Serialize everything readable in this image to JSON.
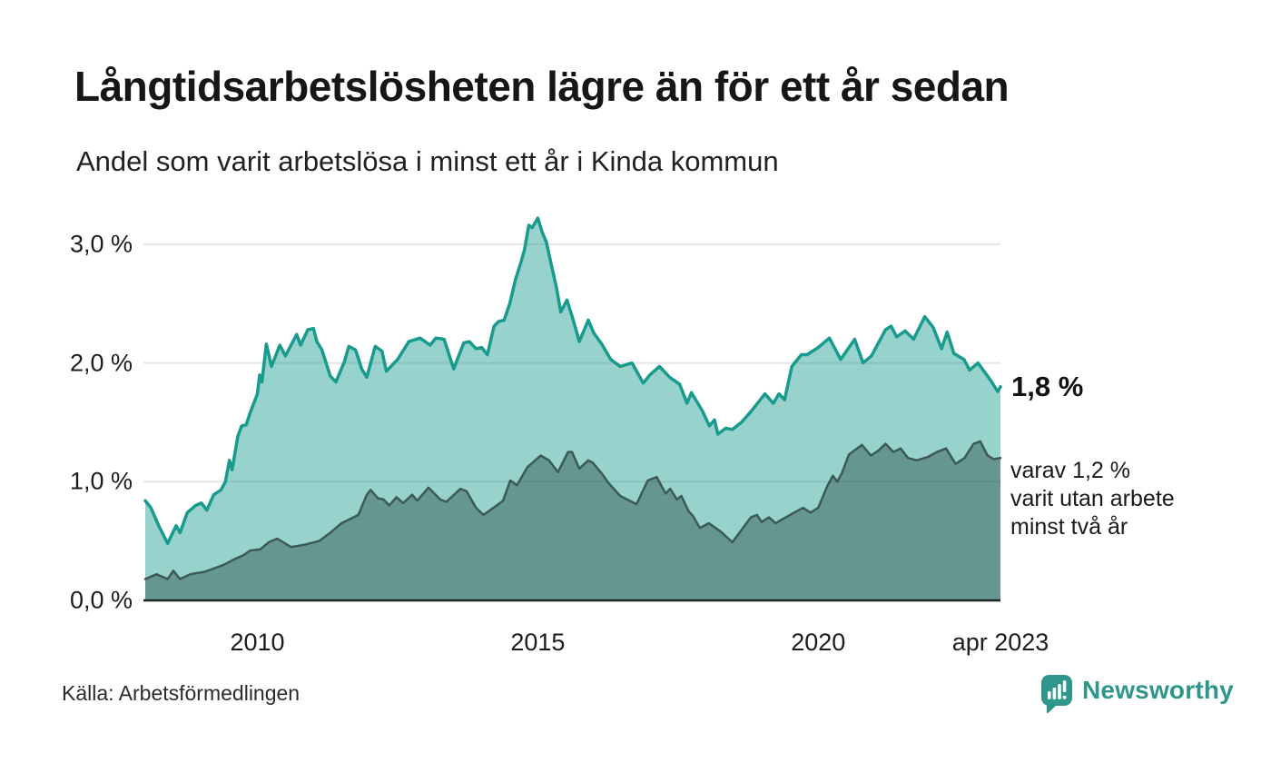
{
  "header": {
    "title": "Långtidsarbetslösheten lägre än för ett år sedan",
    "subtitle": "Andel som varit arbetslösa i minst ett år i Kinda kommun"
  },
  "annotations": {
    "latest_total": "1,8 %",
    "subset_line1": "varav 1,2 %",
    "subset_line2": "varit utan arbete",
    "subset_line3": "minst två år"
  },
  "footer": {
    "source": "Källa: Arbetsförmedlingen",
    "brand": "Newsworthy"
  },
  "colors": {
    "accent_teal": "#189b8d",
    "light_fill": "rgba(34,160,146,0.47)",
    "dark_stroke": "#3c5a55",
    "dark_fill": "rgba(43,77,72,0.45)",
    "gridline": "#e2e4e8",
    "baseline": "#1b2422",
    "brand_teal": "#2e968b",
    "text_dark": "#161616"
  },
  "chart_data": {
    "type": "area",
    "title": "Långtidsarbetslösheten lägre än för ett år sedan",
    "subtitle": "Andel som varit arbetslösa i minst ett år i Kinda kommun",
    "xlabel": "",
    "ylabel": "",
    "x_range": [
      2008.0,
      2023.25
    ],
    "ylim": [
      0,
      3.3
    ],
    "grid": "horizontal",
    "legend": "none (annotated at line ends)",
    "x_axis": {
      "ticks": [
        {
          "label": "2010",
          "year": 2010
        },
        {
          "label": "2015",
          "year": 2015
        },
        {
          "label": "2020",
          "year": 2020
        },
        {
          "label": "apr 2023",
          "year": 2023.25
        }
      ]
    },
    "y_axis": {
      "ticks": [
        {
          "label": "0,0 %",
          "value": 0
        },
        {
          "label": "1,0 %",
          "value": 1
        },
        {
          "label": "2,0 %",
          "value": 2
        },
        {
          "label": "3,0 %",
          "value": 3
        }
      ]
    },
    "series": [
      {
        "name": "Arbetslösa minst ett år (andel, %)",
        "latest_value": 1.8,
        "points": [
          [
            2008.0,
            0.84
          ],
          [
            2008.1,
            0.78
          ],
          [
            2008.25,
            0.62
          ],
          [
            2008.4,
            0.48
          ],
          [
            2008.55,
            0.63
          ],
          [
            2008.62,
            0.57
          ],
          [
            2008.75,
            0.74
          ],
          [
            2008.9,
            0.8
          ],
          [
            2009.0,
            0.82
          ],
          [
            2009.1,
            0.76
          ],
          [
            2009.22,
            0.89
          ],
          [
            2009.35,
            0.93
          ],
          [
            2009.43,
            1.0
          ],
          [
            2009.5,
            1.18
          ],
          [
            2009.55,
            1.1
          ],
          [
            2009.65,
            1.38
          ],
          [
            2009.72,
            1.47
          ],
          [
            2009.8,
            1.48
          ],
          [
            2009.87,
            1.58
          ],
          [
            2010.0,
            1.74
          ],
          [
            2010.04,
            1.9
          ],
          [
            2010.08,
            1.84
          ],
          [
            2010.16,
            2.16
          ],
          [
            2010.25,
            1.97
          ],
          [
            2010.4,
            2.15
          ],
          [
            2010.5,
            2.06
          ],
          [
            2010.7,
            2.24
          ],
          [
            2010.77,
            2.15
          ],
          [
            2010.9,
            2.28
          ],
          [
            2011.0,
            2.29
          ],
          [
            2011.06,
            2.18
          ],
          [
            2011.15,
            2.11
          ],
          [
            2011.3,
            1.89
          ],
          [
            2011.4,
            1.84
          ],
          [
            2011.55,
            2.01
          ],
          [
            2011.63,
            2.14
          ],
          [
            2011.75,
            2.11
          ],
          [
            2011.86,
            1.95
          ],
          [
            2011.95,
            1.88
          ],
          [
            2012.1,
            2.14
          ],
          [
            2012.22,
            2.1
          ],
          [
            2012.3,
            1.93
          ],
          [
            2012.5,
            2.03
          ],
          [
            2012.7,
            2.18
          ],
          [
            2012.9,
            2.21
          ],
          [
            2013.08,
            2.15
          ],
          [
            2013.18,
            2.21
          ],
          [
            2013.33,
            2.2
          ],
          [
            2013.5,
            1.95
          ],
          [
            2013.68,
            2.17
          ],
          [
            2013.78,
            2.18
          ],
          [
            2013.9,
            2.12
          ],
          [
            2014.0,
            2.13
          ],
          [
            2014.1,
            2.07
          ],
          [
            2014.22,
            2.31
          ],
          [
            2014.3,
            2.35
          ],
          [
            2014.4,
            2.36
          ],
          [
            2014.5,
            2.5
          ],
          [
            2014.6,
            2.7
          ],
          [
            2014.7,
            2.85
          ],
          [
            2014.76,
            2.95
          ],
          [
            2014.84,
            3.16
          ],
          [
            2014.9,
            3.14
          ],
          [
            2015.0,
            3.22
          ],
          [
            2015.08,
            3.1
          ],
          [
            2015.15,
            3.02
          ],
          [
            2015.24,
            2.83
          ],
          [
            2015.33,
            2.64
          ],
          [
            2015.41,
            2.43
          ],
          [
            2015.52,
            2.53
          ],
          [
            2015.62,
            2.38
          ],
          [
            2015.74,
            2.18
          ],
          [
            2015.9,
            2.36
          ],
          [
            2016.0,
            2.25
          ],
          [
            2016.14,
            2.16
          ],
          [
            2016.3,
            2.03
          ],
          [
            2016.47,
            1.97
          ],
          [
            2016.68,
            2.0
          ],
          [
            2016.88,
            1.83
          ],
          [
            2017.0,
            1.9
          ],
          [
            2017.17,
            1.97
          ],
          [
            2017.35,
            1.88
          ],
          [
            2017.53,
            1.82
          ],
          [
            2017.66,
            1.66
          ],
          [
            2017.74,
            1.75
          ],
          [
            2017.93,
            1.6
          ],
          [
            2018.06,
            1.47
          ],
          [
            2018.15,
            1.52
          ],
          [
            2018.21,
            1.4
          ],
          [
            2018.35,
            1.45
          ],
          [
            2018.47,
            1.44
          ],
          [
            2018.63,
            1.5
          ],
          [
            2018.8,
            1.59
          ],
          [
            2019.05,
            1.74
          ],
          [
            2019.2,
            1.66
          ],
          [
            2019.3,
            1.74
          ],
          [
            2019.4,
            1.69
          ],
          [
            2019.53,
            1.97
          ],
          [
            2019.7,
            2.07
          ],
          [
            2019.8,
            2.07
          ],
          [
            2020.0,
            2.13
          ],
          [
            2020.2,
            2.21
          ],
          [
            2020.4,
            2.03
          ],
          [
            2020.65,
            2.2
          ],
          [
            2020.8,
            2.0
          ],
          [
            2020.95,
            2.06
          ],
          [
            2021.2,
            2.28
          ],
          [
            2021.3,
            2.31
          ],
          [
            2021.4,
            2.22
          ],
          [
            2021.55,
            2.27
          ],
          [
            2021.7,
            2.2
          ],
          [
            2021.9,
            2.39
          ],
          [
            2022.05,
            2.3
          ],
          [
            2022.2,
            2.12
          ],
          [
            2022.3,
            2.26
          ],
          [
            2022.42,
            2.08
          ],
          [
            2022.6,
            2.03
          ],
          [
            2022.7,
            1.94
          ],
          [
            2022.85,
            2.0
          ],
          [
            2023.08,
            1.85
          ],
          [
            2023.2,
            1.76
          ],
          [
            2023.25,
            1.8
          ]
        ]
      },
      {
        "name": "varav utan arbete minst två år (andel, %)",
        "latest_value": 1.2,
        "points": [
          [
            2008.0,
            0.18
          ],
          [
            2008.2,
            0.22
          ],
          [
            2008.4,
            0.18
          ],
          [
            2008.5,
            0.25
          ],
          [
            2008.62,
            0.18
          ],
          [
            2008.8,
            0.22
          ],
          [
            2009.05,
            0.24
          ],
          [
            2009.17,
            0.26
          ],
          [
            2009.4,
            0.3
          ],
          [
            2009.6,
            0.35
          ],
          [
            2009.75,
            0.38
          ],
          [
            2009.87,
            0.42
          ],
          [
            2010.05,
            0.43
          ],
          [
            2010.2,
            0.49
          ],
          [
            2010.35,
            0.52
          ],
          [
            2010.6,
            0.45
          ],
          [
            2010.85,
            0.47
          ],
          [
            2011.1,
            0.5
          ],
          [
            2011.3,
            0.57
          ],
          [
            2011.5,
            0.65
          ],
          [
            2011.8,
            0.72
          ],
          [
            2011.95,
            0.89
          ],
          [
            2012.02,
            0.93
          ],
          [
            2012.15,
            0.86
          ],
          [
            2012.25,
            0.85
          ],
          [
            2012.35,
            0.8
          ],
          [
            2012.48,
            0.87
          ],
          [
            2012.6,
            0.82
          ],
          [
            2012.76,
            0.89
          ],
          [
            2012.85,
            0.84
          ],
          [
            2013.05,
            0.95
          ],
          [
            2013.26,
            0.85
          ],
          [
            2013.37,
            0.83
          ],
          [
            2013.62,
            0.94
          ],
          [
            2013.73,
            0.92
          ],
          [
            2013.9,
            0.78
          ],
          [
            2014.03,
            0.72
          ],
          [
            2014.24,
            0.79
          ],
          [
            2014.38,
            0.84
          ],
          [
            2014.51,
            1.01
          ],
          [
            2014.63,
            0.97
          ],
          [
            2014.81,
            1.12
          ],
          [
            2015.05,
            1.22
          ],
          [
            2015.2,
            1.18
          ],
          [
            2015.36,
            1.08
          ],
          [
            2015.54,
            1.25
          ],
          [
            2015.61,
            1.25
          ],
          [
            2015.74,
            1.11
          ],
          [
            2015.9,
            1.18
          ],
          [
            2015.98,
            1.16
          ],
          [
            2016.14,
            1.07
          ],
          [
            2016.26,
            0.99
          ],
          [
            2016.47,
            0.88
          ],
          [
            2016.76,
            0.81
          ],
          [
            2016.96,
            1.01
          ],
          [
            2017.12,
            1.04
          ],
          [
            2017.28,
            0.9
          ],
          [
            2017.36,
            0.94
          ],
          [
            2017.48,
            0.85
          ],
          [
            2017.56,
            0.88
          ],
          [
            2017.69,
            0.75
          ],
          [
            2017.77,
            0.71
          ],
          [
            2017.89,
            0.61
          ],
          [
            2018.05,
            0.65
          ],
          [
            2018.26,
            0.58
          ],
          [
            2018.47,
            0.49
          ],
          [
            2018.8,
            0.7
          ],
          [
            2018.91,
            0.72
          ],
          [
            2018.99,
            0.66
          ],
          [
            2019.12,
            0.7
          ],
          [
            2019.24,
            0.65
          ],
          [
            2019.57,
            0.74
          ],
          [
            2019.73,
            0.78
          ],
          [
            2019.86,
            0.74
          ],
          [
            2020.0,
            0.78
          ],
          [
            2020.16,
            0.96
          ],
          [
            2020.26,
            1.05
          ],
          [
            2020.34,
            1.0
          ],
          [
            2020.42,
            1.07
          ],
          [
            2020.55,
            1.23
          ],
          [
            2020.78,
            1.31
          ],
          [
            2020.94,
            1.22
          ],
          [
            2021.07,
            1.26
          ],
          [
            2021.2,
            1.32
          ],
          [
            2021.34,
            1.25
          ],
          [
            2021.47,
            1.28
          ],
          [
            2021.6,
            1.2
          ],
          [
            2021.76,
            1.18
          ],
          [
            2021.96,
            1.21
          ],
          [
            2022.12,
            1.25
          ],
          [
            2022.28,
            1.28
          ],
          [
            2022.45,
            1.15
          ],
          [
            2022.61,
            1.2
          ],
          [
            2022.77,
            1.32
          ],
          [
            2022.89,
            1.34
          ],
          [
            2023.02,
            1.22
          ],
          [
            2023.13,
            1.19
          ],
          [
            2023.25,
            1.2
          ]
        ]
      }
    ]
  }
}
